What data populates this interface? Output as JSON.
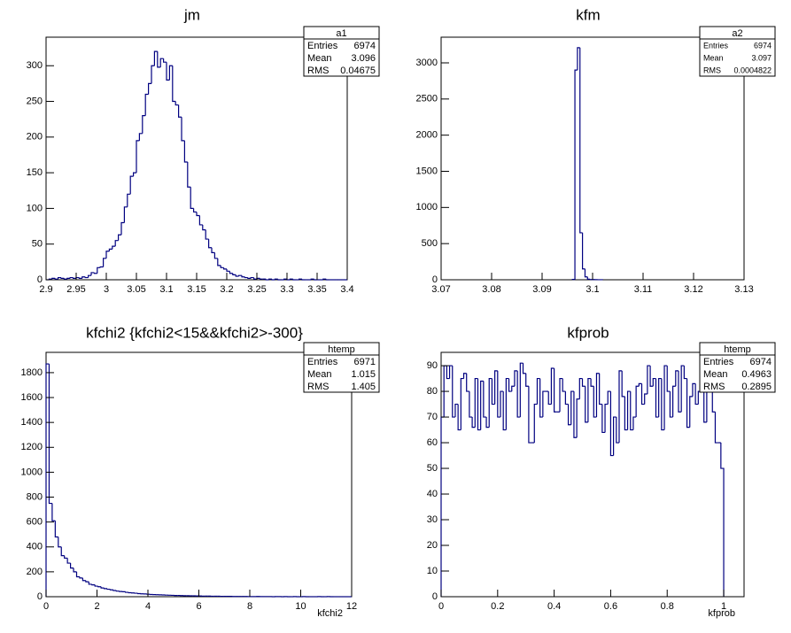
{
  "chart_data": [
    {
      "type": "histogram",
      "title": "jm",
      "bins": [
        2.9,
        2.905,
        2.91,
        2.915,
        2.92,
        2.925,
        2.93,
        2.935,
        2.94,
        2.945,
        2.95,
        2.955,
        2.96,
        2.965,
        2.97,
        2.975,
        2.98,
        2.985,
        2.99,
        2.995,
        3,
        3.005,
        3.01,
        3.015,
        3.02,
        3.025,
        3.03,
        3.035,
        3.04,
        3.045,
        3.05,
        3.055,
        3.06,
        3.065,
        3.07,
        3.075,
        3.08,
        3.085,
        3.09,
        3.095,
        3.1,
        3.105,
        3.11,
        3.115,
        3.12,
        3.125,
        3.13,
        3.135,
        3.14,
        3.145,
        3.15,
        3.155,
        3.16,
        3.165,
        3.17,
        3.175,
        3.18,
        3.185,
        3.19,
        3.195,
        3.2,
        3.205,
        3.21,
        3.215,
        3.22,
        3.225,
        3.23,
        3.235,
        3.24,
        3.245,
        3.25,
        3.255,
        3.26,
        3.265,
        3.27,
        3.275,
        3.28,
        3.285,
        3.29,
        3.295,
        3.3,
        3.305,
        3.31,
        3.315,
        3.32,
        3.325,
        3.33,
        3.335,
        3.34,
        3.345,
        3.35,
        3.355,
        3.36,
        3.365,
        3.37,
        3.375,
        3.38,
        3.385,
        3.39,
        3.395,
        3.4
      ],
      "values": [
        0,
        1,
        2,
        1,
        3,
        2,
        1,
        2,
        3,
        2,
        3,
        2,
        4,
        3,
        6,
        10,
        9,
        17,
        18,
        30,
        40,
        43,
        47,
        55,
        63,
        80,
        102,
        120,
        145,
        150,
        195,
        205,
        230,
        260,
        275,
        300,
        320,
        298,
        310,
        305,
        280,
        300,
        250,
        245,
        228,
        195,
        165,
        130,
        100,
        95,
        90,
        77,
        70,
        57,
        45,
        38,
        30,
        20,
        17,
        15,
        12,
        9,
        7,
        5,
        6,
        4,
        3,
        2,
        3,
        1,
        2,
        1,
        1,
        0,
        1,
        0,
        1,
        0,
        0,
        1,
        0,
        1,
        0,
        0,
        1,
        0,
        0,
        0,
        1,
        0,
        0,
        0,
        1,
        0,
        0,
        0,
        0,
        0,
        0,
        0
      ],
      "color": "#000080",
      "xlim": [
        2.9,
        3.4
      ],
      "xticks": [
        2.9,
        2.95,
        3,
        3.05,
        3.1,
        3.15,
        3.2,
        3.25,
        3.3,
        3.35,
        3.4
      ],
      "ylim": [
        0,
        340
      ],
      "yticks": [
        0,
        50,
        100,
        150,
        200,
        250,
        300
      ],
      "stats": {
        "name": "a1",
        "rows": [
          {
            "label": "Entries",
            "value": 6974
          },
          {
            "label": "Mean",
            "value": 3.096
          },
          {
            "label": "RMS",
            "value": 0.04675
          }
        ]
      }
    },
    {
      "type": "histogram",
      "title": "kfm",
      "bins": [
        3.096,
        3.0965,
        3.097,
        3.0975,
        3.098,
        3.0985,
        3.099,
        3.0995,
        3.1,
        3.1005,
        3.101,
        3.1015,
        3.102
      ],
      "values": [
        5,
        2900,
        3210,
        650,
        150,
        40,
        8,
        4,
        3,
        2,
        1,
        1
      ],
      "color": "#000080",
      "xlim": [
        3.07,
        3.13
      ],
      "xticks": [
        3.07,
        3.08,
        3.09,
        3.1,
        3.11,
        3.12,
        3.13
      ],
      "ylim": [
        0,
        3355
      ],
      "yticks": [
        0,
        500,
        1000,
        1500,
        2000,
        2500,
        3000
      ],
      "stats": {
        "name": "a2",
        "rows": [
          {
            "label": "Entries",
            "value": 6974
          },
          {
            "label": "Mean",
            "value": 3.097
          },
          {
            "label": "RMS",
            "value": 0.0004822
          }
        ]
      }
    },
    {
      "type": "histogram",
      "title": "kfchi2 {kfchi2<15&&kfchi2>-300}",
      "x_label": "kfchi2",
      "bins": [
        0,
        0.12,
        0.24,
        0.36,
        0.48,
        0.6,
        0.72,
        0.84,
        0.96,
        1.08,
        1.2,
        1.32,
        1.44,
        1.56,
        1.68,
        1.8,
        1.92,
        2.04,
        2.16,
        2.28,
        2.4,
        2.52,
        2.64,
        2.76,
        2.88,
        3,
        3.12,
        3.24,
        3.36,
        3.48,
        3.6,
        3.72,
        3.84,
        3.96,
        4.08,
        4.2,
        4.32,
        4.44,
        4.56,
        4.68,
        4.8,
        4.92,
        5.04,
        5.16,
        5.28,
        5.4,
        5.52,
        5.64,
        5.76,
        5.88,
        6,
        6.12,
        6.24,
        6.36,
        6.48,
        6.6,
        6.72,
        6.84,
        6.96,
        7.08,
        7.2,
        7.32,
        7.44,
        7.56,
        7.68,
        7.8,
        7.92,
        8.04,
        8.16,
        8.28,
        8.4,
        8.52,
        8.64,
        8.76,
        8.88,
        9,
        9.12,
        9.24,
        9.36,
        9.48,
        9.6,
        9.72,
        9.84,
        9.96,
        10.08,
        10.2,
        10.32,
        10.44,
        10.56,
        10.68,
        10.8,
        10.92,
        11.04,
        11.16,
        11.28,
        11.4,
        11.52,
        11.64,
        11.76,
        11.88,
        12
      ],
      "values": [
        1870,
        750,
        610,
        480,
        400,
        330,
        310,
        270,
        230,
        200,
        160,
        150,
        130,
        120,
        100,
        95,
        85,
        80,
        70,
        65,
        60,
        55,
        50,
        45,
        42,
        40,
        35,
        32,
        30,
        28,
        25,
        23,
        22,
        20,
        18,
        17,
        16,
        15,
        14,
        13,
        12,
        11,
        10,
        10,
        9,
        8,
        8,
        7,
        7,
        6,
        6,
        5,
        5,
        5,
        4,
        4,
        4,
        3,
        3,
        3,
        3,
        2,
        2,
        2,
        2,
        2,
        1,
        1,
        1,
        2,
        1,
        1,
        1,
        1,
        0,
        1,
        1,
        0,
        1,
        0,
        0,
        1,
        0,
        0,
        1,
        0,
        0,
        0,
        0,
        1,
        0,
        0,
        1,
        0,
        0,
        0,
        0,
        0,
        0,
        0
      ],
      "color": "#000080",
      "xlim": [
        0,
        12
      ],
      "xticks": [
        0,
        2,
        4,
        6,
        8,
        10,
        12
      ],
      "ylim": [
        0,
        1963
      ],
      "yticks": [
        0,
        200,
        400,
        600,
        800,
        1000,
        1200,
        1400,
        1600,
        1800
      ],
      "stats": {
        "name": "htemp",
        "rows": [
          {
            "label": "Entries",
            "value": 6971
          },
          {
            "label": "Mean",
            "value": 1.015
          },
          {
            "label": "RMS",
            "value": 1.405
          }
        ]
      }
    },
    {
      "type": "histogram",
      "title": "kfprob",
      "x_label": "kfprob",
      "bins": [
        0,
        0.01,
        0.02,
        0.03,
        0.04,
        0.05,
        0.06,
        0.07,
        0.08,
        0.09,
        0.1,
        0.11,
        0.12,
        0.13,
        0.14,
        0.15,
        0.16,
        0.17,
        0.18,
        0.19,
        0.2,
        0.21,
        0.22,
        0.23,
        0.24,
        0.25,
        0.26,
        0.27,
        0.28,
        0.29,
        0.3,
        0.31,
        0.32,
        0.33,
        0.34,
        0.35,
        0.36,
        0.37,
        0.38,
        0.39,
        0.4,
        0.41,
        0.42,
        0.43,
        0.44,
        0.45,
        0.46,
        0.47,
        0.48,
        0.49,
        0.5,
        0.51,
        0.52,
        0.53,
        0.54,
        0.55,
        0.56,
        0.57,
        0.58,
        0.59,
        0.6,
        0.61,
        0.62,
        0.63,
        0.64,
        0.65,
        0.66,
        0.67,
        0.68,
        0.69,
        0.7,
        0.71,
        0.72,
        0.73,
        0.74,
        0.75,
        0.76,
        0.77,
        0.78,
        0.79,
        0.8,
        0.81,
        0.82,
        0.83,
        0.84,
        0.85,
        0.86,
        0.87,
        0.88,
        0.89,
        0.9,
        0.91,
        0.92,
        0.93,
        0.94,
        0.95,
        0.96,
        0.97,
        0.98,
        0.99,
        1
      ],
      "values": [
        70,
        90,
        85,
        90,
        70,
        75,
        65,
        85,
        87,
        80,
        70,
        66,
        85,
        65,
        84,
        70,
        66,
        85,
        75,
        88,
        70,
        80,
        65,
        85,
        80,
        82,
        88,
        70,
        91,
        87,
        82,
        60,
        60,
        75,
        85,
        70,
        80,
        80,
        75,
        89,
        72,
        72,
        85,
        80,
        75,
        67,
        80,
        62,
        77,
        85,
        82,
        68,
        85,
        82,
        70,
        87,
        75,
        64,
        75,
        80,
        55,
        70,
        60,
        88,
        78,
        65,
        80,
        65,
        70,
        82,
        83,
        75,
        79,
        90,
        82,
        85,
        70,
        85,
        65,
        90,
        80,
        70,
        82,
        88,
        72,
        90,
        85,
        66,
        78,
        83,
        75,
        80,
        90,
        68,
        82,
        85,
        72,
        60,
        60,
        50
      ],
      "color": "#000080",
      "xlim": [
        0,
        1.072
      ],
      "xticks": [
        0,
        0.2,
        0.4,
        0.6,
        0.8,
        1
      ],
      "ylim": [
        0,
        95.2
      ],
      "yticks": [
        0,
        10,
        20,
        30,
        40,
        50,
        60,
        70,
        80,
        90
      ],
      "stats": {
        "name": "htemp",
        "rows": [
          {
            "label": "Entries",
            "value": 6974
          },
          {
            "label": "Mean",
            "value": 0.4963
          },
          {
            "label": "RMS",
            "value": 0.2895
          }
        ]
      }
    }
  ]
}
